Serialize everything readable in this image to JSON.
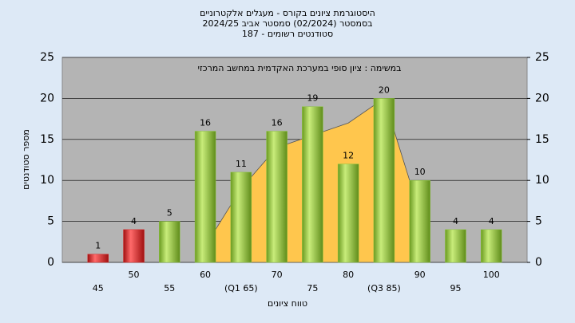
{
  "chart_data": {
    "type": "bar",
    "title_lines": [
      "היסטוגרמת ציונים בקורס - מעגלים אלקטרוניים",
      "בסמסטר  (02/2024)  סמסטר אביב 2024/25",
      "סטודנטים רשומים - 187"
    ],
    "annotation": "במשימה : ציון סופי במערכת האקדמית במחשב המרכזי",
    "ylabel": "מספר סטודנטים",
    "xlabel": "טווח ציונים",
    "categories": [
      "45",
      "50",
      "55",
      "60",
      "(Q1 65)",
      "70",
      "75",
      "80",
      "(Q3 85)",
      "90",
      "95",
      "100"
    ],
    "values": [
      1,
      4,
      5,
      16,
      11,
      16,
      19,
      12,
      20,
      10,
      4,
      4
    ],
    "colors": [
      "#d42a2a",
      "#d42a2a",
      "#8cc63f",
      "#8cc63f",
      "#8cc63f",
      "#8cc63f",
      "#8cc63f",
      "#8cc63f",
      "#8cc63f",
      "#8cc63f",
      "#8cc63f",
      "#8cc63f"
    ],
    "area": {
      "color": "#ffc64d",
      "values": [
        null,
        null,
        null,
        2,
        9,
        14,
        15.5,
        17,
        20,
        6,
        null,
        null
      ]
    },
    "ylim": [
      0,
      25
    ],
    "yticks": [
      0,
      5,
      10,
      15,
      20,
      25
    ],
    "y2lim": [
      0,
      25
    ],
    "y2ticks": [
      0,
      5,
      10,
      15,
      20,
      25
    ],
    "grid": true
  }
}
